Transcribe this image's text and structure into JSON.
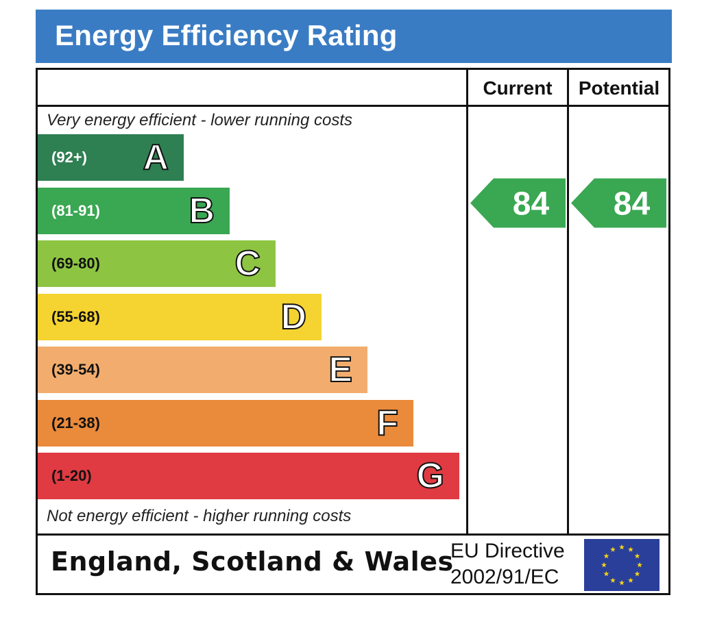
{
  "title": "Energy Efficiency Rating",
  "columns": {
    "current": "Current",
    "potential": "Potential"
  },
  "top_caption": "Very energy efficient - lower running costs",
  "bottom_caption": "Not energy efficient - higher running costs",
  "footer": {
    "region": "England, Scotland & Wales",
    "directive_line1": "EU Directive",
    "directive_line2": "2002/91/EC",
    "flag_icon": "eu-flag-icon"
  },
  "chart_data": {
    "type": "bar",
    "title": "Energy Efficiency Rating",
    "categories": [
      "A",
      "B",
      "C",
      "D",
      "E",
      "F",
      "G"
    ],
    "bands": [
      {
        "letter": "A",
        "range": "(92+)",
        "min": 92,
        "max": 100,
        "color": "#2e7f52",
        "range_text_color": "#ffffff"
      },
      {
        "letter": "B",
        "range": "(81-91)",
        "min": 81,
        "max": 91,
        "color": "#3aa752",
        "range_text_color": "#ffffff"
      },
      {
        "letter": "C",
        "range": "(69-80)",
        "min": 69,
        "max": 80,
        "color": "#8dc543",
        "range_text_color": "#111111"
      },
      {
        "letter": "D",
        "range": "(55-68)",
        "min": 55,
        "max": 68,
        "color": "#f5d330",
        "range_text_color": "#111111"
      },
      {
        "letter": "E",
        "range": "(39-54)",
        "min": 39,
        "max": 54,
        "color": "#f2ad6e",
        "range_text_color": "#111111"
      },
      {
        "letter": "F",
        "range": "(21-38)",
        "min": 21,
        "max": 38,
        "color": "#ea8a3b",
        "range_text_color": "#111111"
      },
      {
        "letter": "G",
        "range": "(1-20)",
        "min": 1,
        "max": 20,
        "color": "#e03a42",
        "range_text_color": "#111111"
      }
    ],
    "series": [
      {
        "name": "Current",
        "value": 84,
        "band": "B"
      },
      {
        "name": "Potential",
        "value": 84,
        "band": "B"
      }
    ],
    "arrow_color": "#3aa752"
  }
}
